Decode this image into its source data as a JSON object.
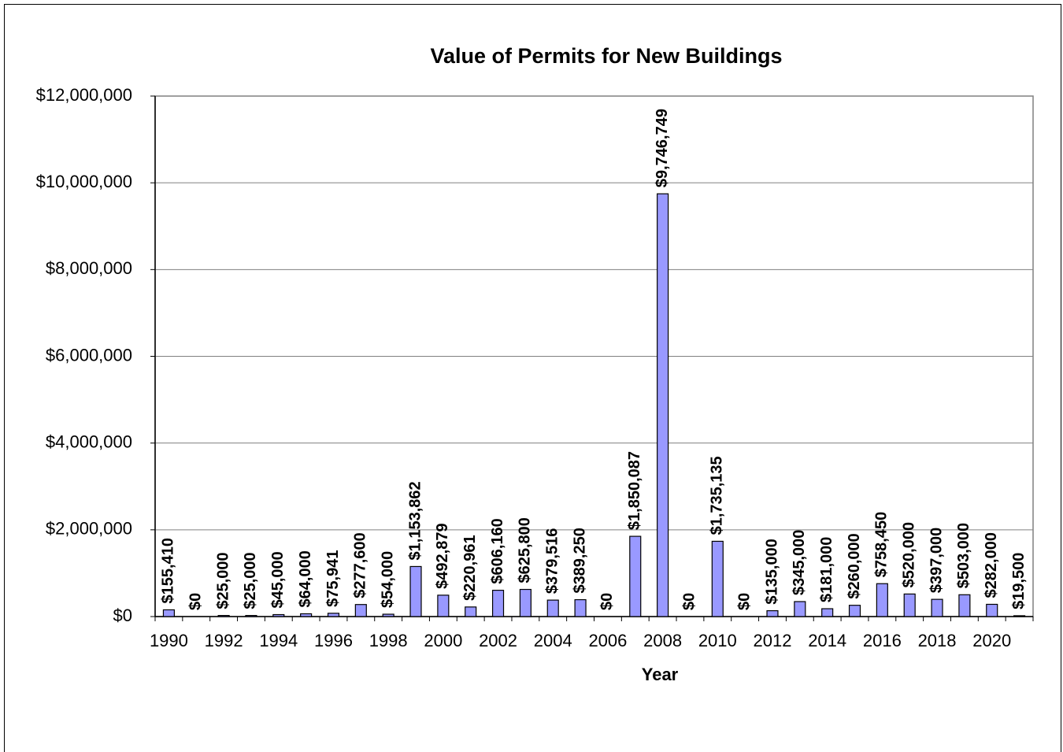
{
  "chart_data": {
    "type": "bar",
    "title": "Value of Permits for New Buildings",
    "xlabel": "Year",
    "x": [
      1990,
      1991,
      1992,
      1993,
      1994,
      1995,
      1996,
      1997,
      1998,
      1999,
      2000,
      2001,
      2002,
      2003,
      2004,
      2005,
      2006,
      2007,
      2008,
      2009,
      2010,
      2011,
      2012,
      2013,
      2014,
      2015,
      2016,
      2017,
      2018,
      2019,
      2020,
      2021
    ],
    "values": [
      155410,
      0,
      25000,
      25000,
      45000,
      64000,
      75941,
      277600,
      54000,
      1153862,
      492879,
      220961,
      606160,
      625800,
      379516,
      389250,
      0,
      1850087,
      9746749,
      0,
      1735135,
      0,
      135000,
      345000,
      181000,
      260000,
      758450,
      520000,
      397000,
      503000,
      282000,
      19500
    ],
    "value_labels": [
      "$155,410",
      "$0",
      "$25,000",
      "$25,000",
      "$45,000",
      "$64,000",
      "$75,941",
      "$277,600",
      "$54,000",
      "$1,153,862",
      "$492,879",
      "$220,961",
      "$606,160",
      "$625,800",
      "$379,516",
      "$389,250",
      "$0",
      "$1,850,087",
      "$9,746,749",
      "$0",
      "$1,735,135",
      "$0",
      "$135,000",
      "$345,000",
      "$181,000",
      "$260,000",
      "$758,450",
      "$520,000",
      "$397,000",
      "$503,000",
      "$282,000",
      "$19,500"
    ],
    "color": "#9999ff",
    "xlim": [
      1989.5,
      2021.5
    ],
    "xticks": [
      1990,
      1992,
      1994,
      1996,
      1998,
      2000,
      2002,
      2004,
      2006,
      2008,
      2010,
      2012,
      2014,
      2016,
      2018,
      2020
    ],
    "ylim": [
      0,
      12000000
    ],
    "yticks": [
      {
        "value": 0,
        "label": "$0"
      },
      {
        "value": 2000000,
        "label": "$2,000,000"
      },
      {
        "value": 4000000,
        "label": "$4,000,000"
      },
      {
        "value": 6000000,
        "label": "$6,000,000"
      },
      {
        "value": 8000000,
        "label": "$8,000,000"
      },
      {
        "value": 10000000,
        "label": "$10,000,000"
      },
      {
        "value": 12000000,
        "label": "$12,000,000"
      }
    ],
    "grid": true
  }
}
